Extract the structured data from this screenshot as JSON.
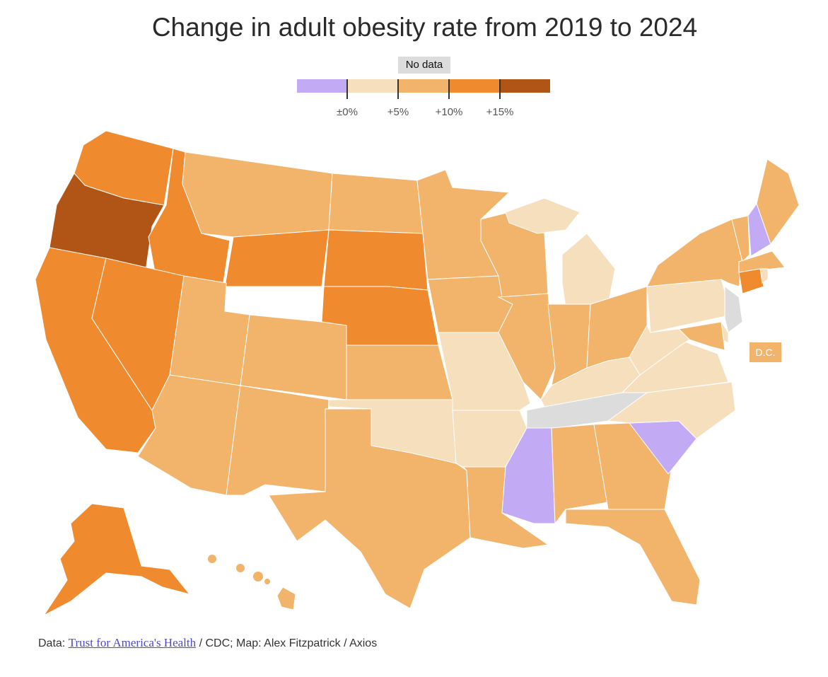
{
  "title": "Change in adult obesity rate from 2019 to 2024",
  "legend": {
    "no_data_label": "No data",
    "ticks": [
      "±0%",
      "+5%",
      "+10%",
      "+15%"
    ],
    "bins": [
      {
        "key": "neg",
        "color": "#c3aaf5"
      },
      {
        "key": "0-5",
        "color": "#f5dfbd"
      },
      {
        "key": "5-10",
        "color": "#f2b36b"
      },
      {
        "key": "10-15",
        "color": "#ef8a2e"
      },
      {
        "key": "15+",
        "color": "#b05515"
      }
    ],
    "no_data_color": "#dcdcdc"
  },
  "dc_label": "D.C.",
  "footer": {
    "prefix": "Data: ",
    "link": "Trust for America's Health",
    "suffix": " / CDC; Map: Alex Fitzpatrick / Axios"
  },
  "chart_data": {
    "type": "choropleth",
    "title": "Change in adult obesity rate from 2019 to 2024",
    "states": {
      "WA": "10-15",
      "OR": "15+",
      "ID": "10-15",
      "MT": "5-10",
      "WY": "10-15",
      "ND": "5-10",
      "SD": "10-15",
      "NE": "10-15",
      "CA": "10-15",
      "NV": "10-15",
      "UT": "5-10",
      "CO": "5-10",
      "AZ": "5-10",
      "NM": "5-10",
      "KS": "5-10",
      "OK": "0-5",
      "TX": "5-10",
      "MN": "5-10",
      "IA": "5-10",
      "MO": "0-5",
      "AR": "0-5",
      "LA": "5-10",
      "WI": "5-10",
      "IL": "5-10",
      "MI_UP": "0-5",
      "MI": "0-5",
      "IN": "5-10",
      "OH": "5-10",
      "KY": "0-5",
      "TN": "nodata",
      "MS": "neg",
      "AL": "5-10",
      "GA": "5-10",
      "FL": "5-10",
      "SC": "neg",
      "NC": "0-5",
      "VA": "0-5",
      "WV": "0-5",
      "PA": "0-5",
      "NY": "5-10",
      "VT": "5-10",
      "NH": "neg",
      "ME": "5-10",
      "MA": "5-10",
      "CT": "10-15",
      "RI": "0-5",
      "NJ": "nodata",
      "DE": "0-5",
      "MD": "5-10",
      "AK": "10-15",
      "HI": "5-10",
      "DC": "5-10"
    }
  }
}
